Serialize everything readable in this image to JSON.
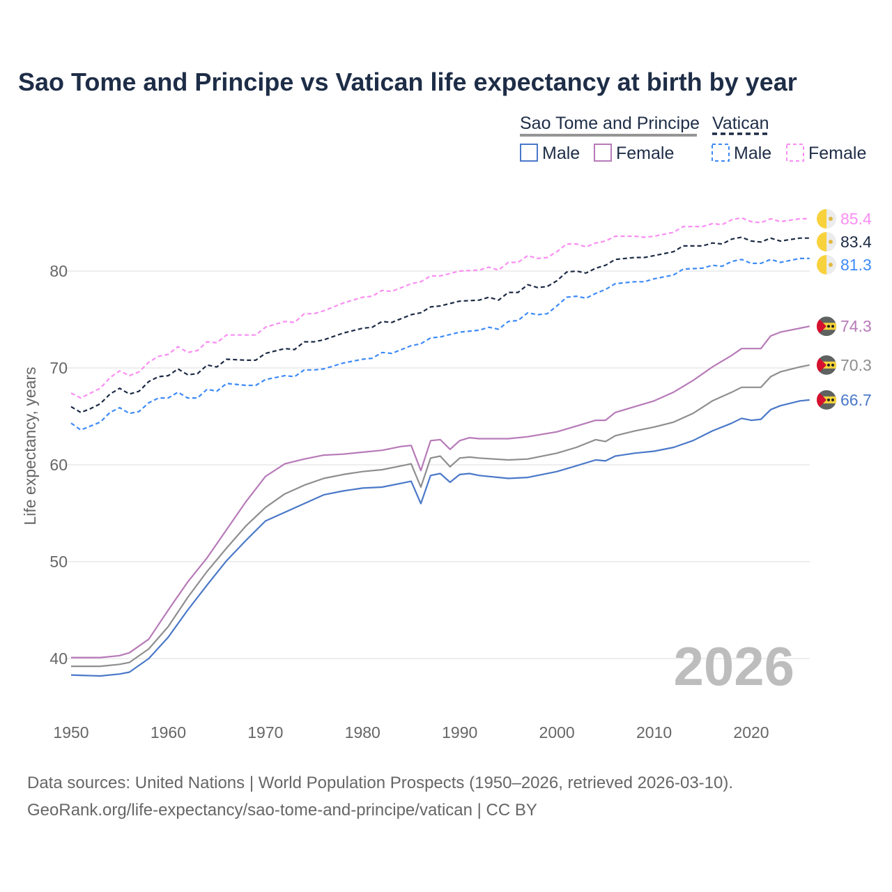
{
  "chart_data": {
    "type": "line",
    "title": "Sao Tome and Principe vs Vatican life expectancy at birth by year",
    "xlabel": "",
    "ylabel": "Life expectancy, years",
    "xlim": [
      1950,
      2026
    ],
    "ylim": [
      35,
      88
    ],
    "x_ticks": [
      1950,
      1960,
      1970,
      1980,
      1990,
      2000,
      2010,
      2020
    ],
    "y_ticks": [
      40,
      50,
      60,
      70,
      80
    ],
    "grid": true,
    "year_watermark": "2026",
    "legend": {
      "placement": "top-right",
      "groups": [
        {
          "country": "Sao Tome and Principe",
          "items": [
            "Male",
            "Female"
          ]
        },
        {
          "country": "Vatican",
          "items": [
            "Male",
            "Female"
          ]
        }
      ]
    },
    "series": [
      {
        "name": "Sao Tome and Principe Female",
        "key": "stp_f",
        "color": "#b77ab8",
        "dashed": false,
        "end_label": "74.3",
        "x": [
          1950,
          1953,
          1955,
          1956,
          1958,
          1960,
          1962,
          1964,
          1966,
          1968,
          1970,
          1972,
          1974,
          1976,
          1978,
          1980,
          1982,
          1984,
          1985,
          1986,
          1987,
          1988,
          1989,
          1990,
          1991,
          1992,
          1995,
          1997,
          2000,
          2002,
          2004,
          2005,
          2006,
          2008,
          2010,
          2012,
          2014,
          2016,
          2018,
          2019,
          2020,
          2021,
          2022,
          2023,
          2025,
          2026
        ],
        "y": [
          40.1,
          40.1,
          40.3,
          40.6,
          42.0,
          45.0,
          47.9,
          50.4,
          53.3,
          56.2,
          58.8,
          60.1,
          60.6,
          61.0,
          61.1,
          61.3,
          61.5,
          61.9,
          62.0,
          59.4,
          62.5,
          62.6,
          61.6,
          62.5,
          62.8,
          62.7,
          62.7,
          62.9,
          63.4,
          64.0,
          64.6,
          64.6,
          65.4,
          66.0,
          66.6,
          67.5,
          68.7,
          70.1,
          71.3,
          72.0,
          72.0,
          72.0,
          73.3,
          73.7,
          74.1,
          74.3
        ]
      },
      {
        "name": "Sao Tome and Principe",
        "key": "stp_t",
        "color": "#8e8e8e",
        "dashed": false,
        "end_label": "70.3",
        "x": [
          1950,
          1953,
          1955,
          1956,
          1958,
          1960,
          1962,
          1964,
          1966,
          1968,
          1970,
          1972,
          1974,
          1976,
          1978,
          1980,
          1982,
          1984,
          1985,
          1986,
          1987,
          1988,
          1989,
          1990,
          1991,
          1992,
          1995,
          1997,
          2000,
          2002,
          2004,
          2005,
          2006,
          2008,
          2010,
          2012,
          2014,
          2016,
          2018,
          2019,
          2020,
          2021,
          2022,
          2023,
          2025,
          2026
        ],
        "y": [
          39.2,
          39.2,
          39.4,
          39.6,
          41.0,
          43.3,
          46.3,
          49.0,
          51.4,
          53.7,
          55.6,
          57.0,
          57.9,
          58.6,
          59.0,
          59.3,
          59.5,
          59.9,
          60.1,
          57.7,
          60.7,
          60.9,
          59.8,
          60.7,
          60.8,
          60.7,
          60.5,
          60.6,
          61.2,
          61.8,
          62.6,
          62.4,
          63.0,
          63.5,
          63.9,
          64.4,
          65.3,
          66.6,
          67.5,
          68.0,
          68.0,
          68.0,
          69.1,
          69.6,
          70.1,
          70.3
        ]
      },
      {
        "name": "Sao Tome and Principe Male",
        "key": "stp_m",
        "color": "#4a78c8",
        "dashed": false,
        "end_label": "66.7",
        "x": [
          1950,
          1953,
          1955,
          1956,
          1958,
          1960,
          1962,
          1964,
          1966,
          1968,
          1970,
          1972,
          1974,
          1976,
          1978,
          1980,
          1982,
          1984,
          1985,
          1986,
          1987,
          1988,
          1989,
          1990,
          1991,
          1992,
          1995,
          1997,
          2000,
          2002,
          2004,
          2005,
          2006,
          2008,
          2010,
          2012,
          2014,
          2016,
          2018,
          2019,
          2020,
          2021,
          2022,
          2023,
          2025,
          2026
        ],
        "y": [
          38.3,
          38.2,
          38.4,
          38.6,
          40.0,
          42.2,
          45.0,
          47.6,
          50.1,
          52.2,
          54.2,
          55.1,
          56.0,
          56.9,
          57.3,
          57.6,
          57.7,
          58.1,
          58.3,
          56.0,
          58.9,
          59.1,
          58.2,
          59.0,
          59.1,
          58.9,
          58.6,
          58.7,
          59.3,
          59.9,
          60.5,
          60.4,
          60.9,
          61.2,
          61.4,
          61.8,
          62.5,
          63.5,
          64.3,
          64.8,
          64.6,
          64.7,
          65.7,
          66.1,
          66.6,
          66.7
        ]
      },
      {
        "name": "Vatican Female",
        "key": "vat_f",
        "color": "#f98ef2",
        "dashed": true,
        "end_label": "85.4",
        "x": [
          1950,
          1951,
          1952,
          1953,
          1954,
          1955,
          1956,
          1957,
          1958,
          1959,
          1960,
          1961,
          1962,
          1963,
          1964,
          1965,
          1966,
          1968,
          1969,
          1970,
          1972,
          1973,
          1974,
          1975,
          1976,
          1978,
          1980,
          1981,
          1982,
          1983,
          1984,
          1985,
          1986,
          1987,
          1988,
          1990,
          1992,
          1993,
          1994,
          1995,
          1996,
          1997,
          1998,
          1999,
          2000,
          2001,
          2002,
          2003,
          2004,
          2005,
          2006,
          2008,
          2009,
          2010,
          2012,
          2013,
          2015,
          2016,
          2017,
          2018,
          2019,
          2020,
          2021,
          2022,
          2023,
          2025,
          2026
        ],
        "y": [
          67.4,
          66.9,
          67.4,
          67.9,
          69.0,
          69.7,
          69.2,
          69.6,
          70.6,
          71.2,
          71.4,
          72.2,
          71.6,
          71.8,
          72.7,
          72.6,
          73.4,
          73.4,
          73.4,
          74.2,
          74.8,
          74.7,
          75.6,
          75.6,
          75.9,
          76.7,
          77.3,
          77.4,
          78.0,
          77.9,
          78.3,
          78.7,
          78.9,
          79.5,
          79.5,
          80.0,
          80.1,
          80.4,
          80.1,
          80.9,
          80.9,
          81.6,
          81.3,
          81.4,
          82.0,
          82.8,
          82.8,
          82.5,
          82.9,
          83.1,
          83.6,
          83.6,
          83.5,
          83.6,
          84.0,
          84.6,
          84.6,
          84.9,
          84.8,
          85.3,
          85.5,
          85.1,
          85.0,
          85.4,
          85.1,
          85.4,
          85.4
        ]
      },
      {
        "name": "Vatican",
        "key": "vat_t",
        "color": "#1c2a44",
        "dashed": true,
        "end_label": "83.4",
        "x": [
          1950,
          1951,
          1952,
          1953,
          1954,
          1955,
          1956,
          1957,
          1958,
          1959,
          1960,
          1961,
          1962,
          1963,
          1964,
          1965,
          1966,
          1968,
          1969,
          1970,
          1972,
          1973,
          1974,
          1975,
          1976,
          1978,
          1980,
          1981,
          1982,
          1983,
          1984,
          1985,
          1986,
          1987,
          1988,
          1990,
          1992,
          1993,
          1994,
          1995,
          1996,
          1997,
          1998,
          1999,
          2000,
          2001,
          2002,
          2003,
          2004,
          2005,
          2006,
          2008,
          2009,
          2010,
          2012,
          2013,
          2015,
          2016,
          2017,
          2018,
          2019,
          2020,
          2021,
          2022,
          2023,
          2025,
          2026
        ],
        "y": [
          66.0,
          65.4,
          65.8,
          66.3,
          67.3,
          67.9,
          67.3,
          67.6,
          68.6,
          69.1,
          69.2,
          69.9,
          69.3,
          69.4,
          70.3,
          70.1,
          70.9,
          70.8,
          70.8,
          71.5,
          72.0,
          71.9,
          72.7,
          72.7,
          72.9,
          73.6,
          74.1,
          74.2,
          74.8,
          74.7,
          75.1,
          75.5,
          75.7,
          76.3,
          76.4,
          76.9,
          77.0,
          77.3,
          77.0,
          77.8,
          77.8,
          78.6,
          78.3,
          78.4,
          79.0,
          79.9,
          80.0,
          79.8,
          80.3,
          80.6,
          81.2,
          81.4,
          81.4,
          81.6,
          82.0,
          82.6,
          82.6,
          82.9,
          82.8,
          83.3,
          83.5,
          83.1,
          83.0,
          83.4,
          83.1,
          83.4,
          83.4
        ]
      },
      {
        "name": "Vatican Male",
        "key": "vat_m",
        "color": "#3d8af7",
        "dashed": true,
        "end_label": "81.3",
        "x": [
          1950,
          1951,
          1952,
          1953,
          1954,
          1955,
          1956,
          1957,
          1958,
          1959,
          1960,
          1961,
          1962,
          1963,
          1964,
          1965,
          1966,
          1968,
          1969,
          1970,
          1972,
          1973,
          1974,
          1975,
          1976,
          1978,
          1980,
          1981,
          1982,
          1983,
          1984,
          1985,
          1986,
          1987,
          1988,
          1990,
          1992,
          1993,
          1994,
          1995,
          1996,
          1997,
          1998,
          1999,
          2000,
          2001,
          2002,
          2003,
          2004,
          2005,
          2006,
          2008,
          2009,
          2010,
          2012,
          2013,
          2015,
          2016,
          2017,
          2018,
          2019,
          2020,
          2021,
          2022,
          2023,
          2025,
          2026
        ],
        "y": [
          64.3,
          63.6,
          64.0,
          64.4,
          65.4,
          65.9,
          65.3,
          65.5,
          66.4,
          66.9,
          66.9,
          67.5,
          66.9,
          66.9,
          67.8,
          67.6,
          68.4,
          68.2,
          68.2,
          68.8,
          69.2,
          69.1,
          69.8,
          69.8,
          69.9,
          70.5,
          70.9,
          71.0,
          71.6,
          71.5,
          71.9,
          72.3,
          72.5,
          73.1,
          73.2,
          73.7,
          73.9,
          74.2,
          74.0,
          74.8,
          74.9,
          75.7,
          75.5,
          75.6,
          76.4,
          77.3,
          77.4,
          77.2,
          77.7,
          78.1,
          78.7,
          78.9,
          78.9,
          79.2,
          79.6,
          80.2,
          80.3,
          80.6,
          80.5,
          81.0,
          81.2,
          80.8,
          80.8,
          81.2,
          80.9,
          81.3,
          81.3
        ]
      }
    ]
  },
  "legend": {
    "stp_label": "Sao Tome and Principe",
    "vat_label": "Vatican",
    "stp_male": "Male",
    "stp_female": "Female",
    "vat_male": "Male",
    "vat_female": "Female"
  },
  "footer": {
    "line1": "Data sources: United Nations | World Population Prospects (1950–2026, retrieved 2026-03-10).",
    "line2": "GeoRank.org/life-expectancy/sao-tome-and-principe/vatican | CC BY"
  }
}
